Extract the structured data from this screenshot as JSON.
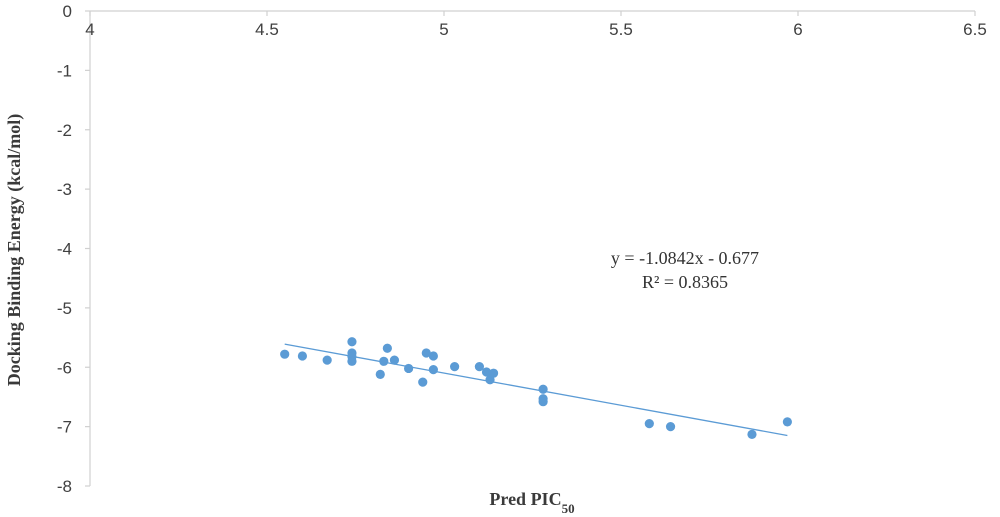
{
  "chart_data": {
    "type": "scatter",
    "xlabel": "Pred PIC",
    "xlabel_subscript": "50",
    "ylabel": "Docking Binding Energy (kcal/mol)",
    "xlim": [
      4,
      6.5
    ],
    "ylim": [
      -8,
      0
    ],
    "x_tick_labels": [
      "4",
      "4.5",
      "5",
      "5.5",
      "6",
      "6.5"
    ],
    "y_tick_labels": [
      "0",
      "-1",
      "-2",
      "-3",
      "-4",
      "-5",
      "-6",
      "-7",
      "-8"
    ],
    "x_axis_position": "top (at y = 0)",
    "grid": false,
    "legend": "none",
    "point_color": "#5b9bd5",
    "trendline": {
      "type": "linear",
      "equation": "y = -1.0842x - 0.677",
      "r_squared": "R² = 0.8365",
      "slope": -1.0842,
      "intercept": -0.677,
      "x_range": [
        4.55,
        5.97
      ]
    },
    "series": [
      {
        "x": [
          4.55,
          4.6,
          4.67,
          4.74,
          4.74,
          4.74,
          4.74,
          4.82,
          4.83,
          4.84,
          4.86,
          4.9,
          4.94,
          4.95,
          4.97,
          4.97,
          5.03,
          5.1,
          5.12,
          5.13,
          5.14,
          5.28,
          5.28,
          5.28,
          5.58,
          5.64,
          5.87,
          5.97
        ],
        "y": [
          -5.78,
          -5.81,
          -5.88,
          -5.57,
          -5.76,
          -5.82,
          -5.9,
          -6.12,
          -5.9,
          -5.68,
          -5.88,
          -6.02,
          -6.25,
          -5.76,
          -5.81,
          -6.04,
          -5.99,
          -5.99,
          -6.08,
          -6.21,
          -6.1,
          -6.37,
          -6.53,
          -6.58,
          -6.95,
          -7.0,
          -7.13,
          -6.92
        ]
      }
    ]
  }
}
